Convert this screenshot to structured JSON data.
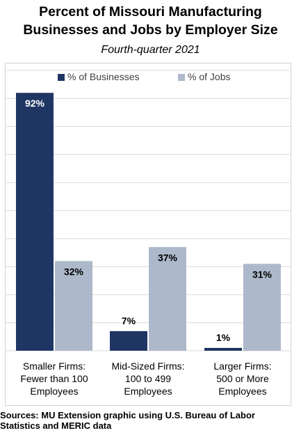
{
  "title_line1": "Percent of Missouri Manufacturing",
  "title_line2": "Businesses and Jobs by Employer Size",
  "subtitle": "Fourth-quarter 2021",
  "source_line1": "Sources: MU Extension graphic using U.S. Bureau of Labor",
  "source_line2": "Statistics and MERIC data",
  "colors": {
    "businesses": "#1f3664",
    "jobs": "#adb9ca",
    "grid": "#d9d9d9",
    "label_dark_bar": "#ffffff",
    "label_default": "#000000"
  },
  "chart_data": {
    "type": "bar",
    "categories": [
      [
        "Smaller Firms:",
        "Fewer than 100",
        "Employees"
      ],
      [
        "Mid-Sized Firms:",
        "100 to 499",
        "Employees"
      ],
      [
        "Larger Firms:",
        "500 or More",
        "Employees"
      ]
    ],
    "series": [
      {
        "name": "% of Businesses",
        "values": [
          92,
          7,
          1
        ],
        "labels": [
          "92%",
          "7%",
          "1%"
        ]
      },
      {
        "name": "% of Jobs",
        "values": [
          32,
          37,
          31
        ],
        "labels": [
          "32%",
          "37%",
          "31%"
        ]
      }
    ],
    "ylim": [
      0,
      100
    ],
    "grid": true,
    "legend_position": "top"
  }
}
